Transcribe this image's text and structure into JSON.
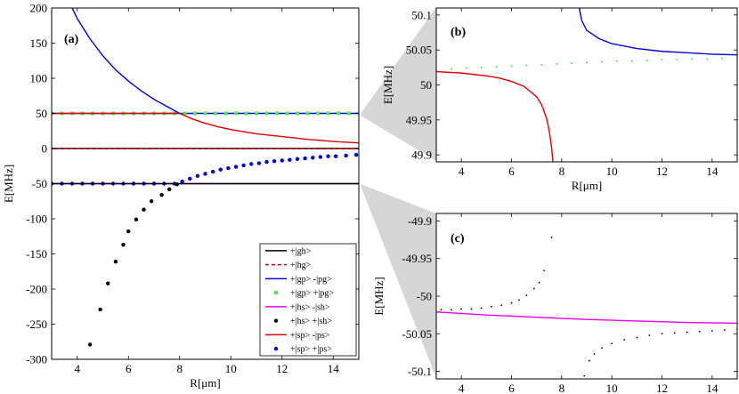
{
  "colors": {
    "black": "#000000",
    "red": "#e00000",
    "blue": "#0000dd",
    "green": "#44ee44",
    "magenta": "#ee00ee",
    "funnel": "#d6d6d6"
  },
  "chart_data": [
    {
      "type": "line",
      "panel_label": "(a)",
      "xlabel": "R[μm]",
      "ylabel": "E[MHz]",
      "xlim": [
        3,
        15
      ],
      "ylim": [
        -300,
        200
      ],
      "xticks": [
        4,
        6,
        8,
        10,
        12,
        14
      ],
      "yticks": [
        -300,
        -250,
        -200,
        -150,
        -100,
        -50,
        0,
        50,
        100,
        150,
        200
      ],
      "grid": false,
      "legend_position": "bottom-right",
      "series": [
        {
          "name": "+|gh>",
          "style": "solid",
          "color": "black",
          "legend": true,
          "points": [
            [
              3,
              0
            ],
            [
              15,
              0
            ]
          ]
        },
        {
          "name": "+|hg>",
          "style": "dashed",
          "color": "red",
          "legend": true,
          "points": [
            [
              3,
              0
            ],
            [
              15,
              0
            ]
          ]
        },
        {
          "name": "+|gp> -|pg>",
          "style": "solid",
          "color": "blue",
          "legend": true,
          "points": [
            [
              3,
              50
            ],
            [
              15,
              50
            ]
          ]
        },
        {
          "name": "+|gp> +|pg>",
          "style": "marker",
          "color": "green",
          "legend": true,
          "points": [
            [
              3.0,
              50
            ],
            [
              3.4,
              50
            ],
            [
              3.8,
              50
            ],
            [
              4.2,
              50
            ],
            [
              4.6,
              50
            ],
            [
              5.0,
              50
            ],
            [
              5.4,
              50
            ],
            [
              5.8,
              50
            ],
            [
              6.2,
              50
            ],
            [
              6.6,
              50
            ],
            [
              7.0,
              50
            ],
            [
              7.4,
              50
            ],
            [
              7.8,
              50
            ],
            [
              8.2,
              50
            ],
            [
              8.6,
              50
            ],
            [
              9.0,
              50
            ],
            [
              9.4,
              50
            ],
            [
              9.8,
              50
            ],
            [
              10.2,
              50
            ],
            [
              10.6,
              50
            ],
            [
              11.0,
              50
            ],
            [
              11.4,
              50
            ],
            [
              11.8,
              50
            ],
            [
              12.2,
              50
            ],
            [
              12.6,
              50
            ],
            [
              13.0,
              50
            ],
            [
              13.4,
              50
            ],
            [
              13.8,
              50
            ],
            [
              14.2,
              50
            ],
            [
              14.6,
              50
            ],
            [
              15.0,
              50
            ]
          ]
        },
        {
          "name": "+|hs> -|sh>",
          "style": "solid",
          "color": "magenta",
          "legend": true,
          "points": [
            [
              3,
              -50
            ],
            [
              15,
              -50
            ]
          ]
        },
        {
          "name": "+|hs> +|sh>",
          "style": "marker",
          "color": "black",
          "legend": true,
          "points": [
            [
              4.5,
              -279
            ],
            [
              4.9,
              -229
            ],
            [
              5.2,
              -192
            ],
            [
              5.5,
              -161
            ],
            [
              5.8,
              -137
            ],
            [
              6.0,
              -118
            ],
            [
              6.3,
              -101
            ],
            [
              6.6,
              -87
            ],
            [
              6.9,
              -75
            ],
            [
              7.3,
              -66
            ],
            [
              7.6,
              -58
            ],
            [
              7.9,
              -51
            ]
          ]
        },
        {
          "name": "+|sp> -|ps>",
          "style": "solid",
          "color": "red",
          "legend": true,
          "points": [
            [
              3.0,
              50
            ],
            [
              4.0,
              50
            ],
            [
              5.0,
              50
            ],
            [
              6.0,
              50
            ],
            [
              7.0,
              50
            ],
            [
              7.5,
              50
            ],
            [
              8.0,
              50
            ],
            [
              8.5,
              42
            ],
            [
              9.0,
              36
            ],
            [
              9.5,
              31
            ],
            [
              10.0,
              27
            ],
            [
              11.0,
              21
            ],
            [
              12.0,
              17
            ],
            [
              13.0,
              13
            ],
            [
              14.0,
              10
            ],
            [
              15.0,
              8
            ]
          ]
        },
        {
          "name": "+|sp> +|ps>",
          "style": "marker",
          "color": "blue",
          "legend": true,
          "points": [
            [
              3.0,
              -50
            ],
            [
              3.4,
              -50
            ],
            [
              3.8,
              -50
            ],
            [
              4.2,
              -50
            ],
            [
              4.6,
              -50
            ],
            [
              5.0,
              -50
            ],
            [
              5.4,
              -50
            ],
            [
              5.8,
              -50
            ],
            [
              6.2,
              -50
            ],
            [
              6.6,
              -50
            ],
            [
              7.0,
              -50
            ],
            [
              7.4,
              -50
            ],
            [
              7.8,
              -50
            ],
            [
              8.1,
              -47
            ],
            [
              8.4,
              -43
            ],
            [
              8.7,
              -39
            ],
            [
              9.0,
              -36
            ],
            [
              9.3,
              -33
            ],
            [
              9.6,
              -30
            ],
            [
              9.9,
              -28
            ],
            [
              10.2,
              -26
            ],
            [
              10.5,
              -24
            ],
            [
              10.8,
              -22
            ],
            [
              11.1,
              -21
            ],
            [
              11.4,
              -19
            ],
            [
              11.7,
              -18
            ],
            [
              12.0,
              -17
            ],
            [
              12.3,
              -16
            ],
            [
              12.6,
              -15
            ],
            [
              12.9,
              -14
            ],
            [
              13.2,
              -13
            ],
            [
              13.5,
              -12
            ],
            [
              13.8,
              -11
            ],
            [
              14.1,
              -11
            ],
            [
              14.5,
              -10
            ],
            [
              14.9,
              -9
            ]
          ]
        },
        {
          "name": "",
          "style": "solid",
          "color": "blue",
          "legend": false,
          "points": [
            [
              3.8,
              200
            ],
            [
              4.0,
              185
            ],
            [
              4.5,
              156
            ],
            [
              5.0,
              132
            ],
            [
              5.5,
              112
            ],
            [
              6.0,
              96
            ],
            [
              6.5,
              82
            ],
            [
              7.0,
              70
            ],
            [
              7.5,
              60
            ],
            [
              8.0,
              50
            ]
          ]
        },
        {
          "name": "",
          "style": "solid",
          "color": "black",
          "legend": false,
          "points": [
            [
              3,
              -50
            ],
            [
              15,
              -50
            ]
          ]
        }
      ]
    },
    {
      "type": "line",
      "panel_label": "(b)",
      "xlabel": "R[μm]",
      "ylabel": "E[MHz]",
      "xlim": [
        3,
        15
      ],
      "ylim": [
        49.89,
        50.11
      ],
      "xticks": [
        4,
        6,
        8,
        10,
        12,
        14
      ],
      "yticks": [
        49.9,
        49.95,
        50,
        50.05,
        50.1
      ],
      "ytick_labels": [
        "49.9",
        "49.95",
        "50",
        "50.05",
        "50.1"
      ],
      "grid": false,
      "series": [
        {
          "name": "",
          "style": "solid",
          "color": "red",
          "points": [
            [
              3.0,
              50.019
            ],
            [
              4.0,
              50.017
            ],
            [
              5.0,
              50.013
            ],
            [
              5.5,
              50.01
            ],
            [
              6.0,
              50.005
            ],
            [
              6.5,
              49.998
            ],
            [
              7.0,
              49.983
            ],
            [
              7.2,
              49.972
            ],
            [
              7.4,
              49.952
            ],
            [
              7.5,
              49.935
            ],
            [
              7.6,
              49.91
            ],
            [
              7.65,
              49.89
            ]
          ]
        },
        {
          "name": "",
          "style": "solid",
          "color": "blue",
          "points": [
            [
              8.7,
              50.11
            ],
            [
              8.8,
              50.092
            ],
            [
              9.0,
              50.078
            ],
            [
              9.5,
              50.066
            ],
            [
              10.0,
              50.059
            ],
            [
              11.0,
              50.052
            ],
            [
              12.0,
              50.048
            ],
            [
              13.0,
              50.046
            ],
            [
              14.0,
              50.044
            ],
            [
              15.0,
              50.043
            ]
          ]
        },
        {
          "name": "",
          "style": "marker",
          "color": "green",
          "points": [
            [
              3.0,
              50.022
            ],
            [
              3.6,
              50.023
            ],
            [
              4.2,
              50.024
            ],
            [
              4.8,
              50.025
            ],
            [
              5.4,
              50.026
            ],
            [
              6.0,
              50.027
            ],
            [
              6.6,
              50.028
            ],
            [
              7.2,
              50.029
            ],
            [
              7.8,
              50.03
            ],
            [
              8.4,
              50.031
            ],
            [
              9.0,
              50.032
            ],
            [
              9.6,
              50.033
            ],
            [
              10.2,
              50.034
            ],
            [
              10.8,
              50.034
            ],
            [
              11.4,
              50.035
            ],
            [
              12.0,
              50.036
            ],
            [
              12.6,
              50.036
            ],
            [
              13.2,
              50.037
            ],
            [
              13.8,
              50.037
            ],
            [
              14.4,
              50.038
            ],
            [
              15.0,
              50.038
            ]
          ]
        }
      ]
    },
    {
      "type": "line",
      "panel_label": "(c)",
      "xlabel": "R[μm]",
      "ylabel": "E[MHz]",
      "xlim": [
        3,
        15
      ],
      "ylim": [
        -50.11,
        -49.89
      ],
      "xticks": [
        4,
        6,
        8,
        10,
        12,
        14
      ],
      "yticks": [
        -50.1,
        -50.05,
        -50,
        -49.95,
        -49.9
      ],
      "ytick_labels": [
        "-50.1",
        "-50.05",
        "-50",
        "-49.95",
        "-49.9"
      ],
      "grid": false,
      "series": [
        {
          "name": "",
          "style": "solid",
          "color": "magenta",
          "points": [
            [
              3.0,
              -50.021
            ],
            [
              5.0,
              -50.025
            ],
            [
              7.0,
              -50.028
            ],
            [
              9.0,
              -50.031
            ],
            [
              11.0,
              -50.033
            ],
            [
              13.0,
              -50.035
            ],
            [
              15.0,
              -50.036
            ]
          ]
        },
        {
          "name": "",
          "style": "marker",
          "color": "black",
          "points": [
            [
              3.2,
              -50.018
            ],
            [
              3.6,
              -50.018
            ],
            [
              4.0,
              -50.017
            ],
            [
              4.4,
              -50.017
            ],
            [
              4.8,
              -50.016
            ],
            [
              5.2,
              -50.014
            ],
            [
              5.6,
              -50.012
            ],
            [
              6.0,
              -50.009
            ],
            [
              6.3,
              -50.005
            ],
            [
              6.6,
              -49.999
            ],
            [
              6.9,
              -49.99
            ],
            [
              7.1,
              -49.982
            ],
            [
              7.3,
              -49.966
            ],
            [
              7.6,
              -49.922
            ]
          ]
        },
        {
          "name": "",
          "style": "marker",
          "color": "black",
          "points": [
            [
              8.9,
              -50.106
            ],
            [
              9.1,
              -50.086
            ],
            [
              9.3,
              -50.077
            ],
            [
              9.6,
              -50.069
            ],
            [
              10.0,
              -50.063
            ],
            [
              10.5,
              -50.058
            ],
            [
              11.0,
              -50.055
            ],
            [
              11.5,
              -50.052
            ],
            [
              12.0,
              -50.05
            ],
            [
              12.5,
              -50.049
            ],
            [
              13.0,
              -50.048
            ],
            [
              13.5,
              -50.047
            ],
            [
              14.0,
              -50.046
            ],
            [
              14.5,
              -50.045
            ],
            [
              15.0,
              -50.044
            ]
          ]
        }
      ]
    }
  ]
}
